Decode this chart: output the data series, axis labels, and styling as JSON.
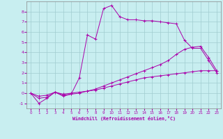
{
  "xlabel": "Windchill (Refroidissement éolien,°C)",
  "background_color": "#c8eef0",
  "line_color": "#aa00aa",
  "grid_color": "#a0ccd0",
  "xlim": [
    -0.5,
    23.5
  ],
  "ylim": [
    -1.5,
    9.0
  ],
  "yticks": [
    -1,
    0,
    1,
    2,
    3,
    4,
    5,
    6,
    7,
    8
  ],
  "xticks": [
    0,
    1,
    2,
    3,
    4,
    5,
    6,
    7,
    8,
    9,
    10,
    11,
    12,
    13,
    14,
    15,
    16,
    17,
    18,
    19,
    20,
    21,
    22,
    23
  ],
  "series": [
    {
      "x": [
        0,
        1,
        2,
        3,
        4,
        5,
        6,
        7,
        8,
        9,
        10,
        11,
        12,
        13,
        14,
        15,
        16,
        17,
        18,
        19,
        20,
        21,
        22,
        23
      ],
      "y": [
        0.0,
        -1.0,
        -0.5,
        0.1,
        -0.3,
        -0.1,
        1.5,
        5.7,
        5.3,
        8.3,
        8.6,
        7.5,
        7.2,
        7.2,
        7.1,
        7.1,
        7.0,
        6.9,
        6.8,
        5.2,
        4.4,
        4.4,
        3.2,
        2.0
      ]
    },
    {
      "x": [
        0,
        1,
        2,
        3,
        4,
        5,
        6,
        7,
        8,
        9,
        10,
        11,
        12,
        13,
        14,
        15,
        16,
        17,
        18,
        19,
        20,
        21,
        22,
        23
      ],
      "y": [
        0.0,
        -0.5,
        -0.4,
        0.1,
        -0.2,
        -0.1,
        0.0,
        0.2,
        0.4,
        0.7,
        1.0,
        1.3,
        1.6,
        1.9,
        2.2,
        2.5,
        2.8,
        3.2,
        3.8,
        4.3,
        4.5,
        4.6,
        3.5,
        2.2
      ]
    },
    {
      "x": [
        0,
        1,
        2,
        3,
        4,
        5,
        6,
        7,
        8,
        9,
        10,
        11,
        12,
        13,
        14,
        15,
        16,
        17,
        18,
        19,
        20,
        21,
        22,
        23
      ],
      "y": [
        0.0,
        -0.3,
        -0.2,
        0.1,
        -0.1,
        0.0,
        0.1,
        0.2,
        0.3,
        0.5,
        0.7,
        0.9,
        1.1,
        1.3,
        1.5,
        1.6,
        1.7,
        1.8,
        1.9,
        2.0,
        2.1,
        2.2,
        2.2,
        2.2
      ]
    }
  ]
}
